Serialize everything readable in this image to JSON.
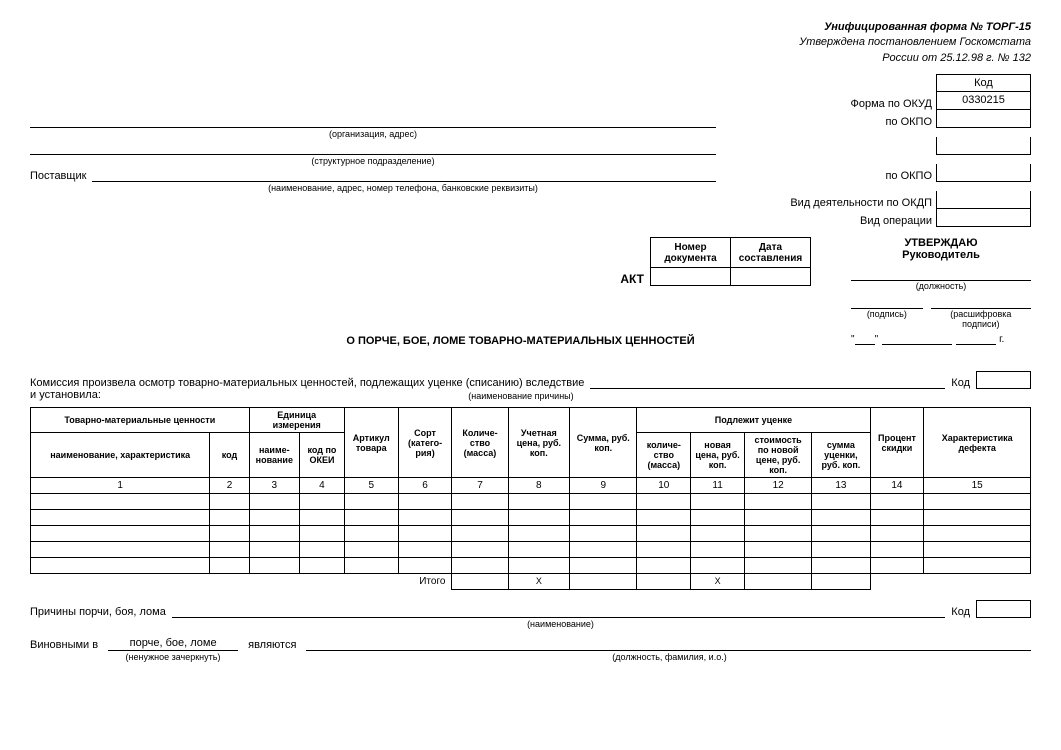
{
  "header": {
    "line1": "Унифицированная форма № ТОРГ-15",
    "line2": "Утверждена постановлением Госкомстата",
    "line3": "России от 25.12.98 г. № 132"
  },
  "codes": {
    "header": "Код",
    "okud_label": "Форма по ОКУД",
    "okud_value": "0330215",
    "okpo1_label": "по ОКПО",
    "okpo2_label": "по ОКПО",
    "okdp_label": "Вид деятельности по ОКДП",
    "operation_label": "Вид операции"
  },
  "captions": {
    "org_address": "(организация, адрес)",
    "struct_unit": "(структурное подразделение)",
    "supplier_details": "(наименование, адрес, номер телефона, банковские реквизиты)",
    "position": "(должность)",
    "signature": "(подпись)",
    "decipher": "(расшифровка подписи)",
    "reason_name": "(наименование причины)",
    "name_caption": "(наименование)",
    "strike_unneeded": "(ненужное зачеркнуть)",
    "position_fio": "(должность, фамилия, и.о.)"
  },
  "labels": {
    "supplier": "Поставщик",
    "approve": "УТВЕРЖДАЮ",
    "manager": "Руководитель",
    "act": "АКТ",
    "act_subtitle": "О ПОРЧЕ, БОЕ, ЛОМЕ ТОВАРНО-МАТЕРИАЛЬНЫХ ЦЕННОСТЕЙ",
    "doc_number": "Номер документа",
    "doc_date": "Дата составления",
    "commission_text": "Комиссия произвела осмотр товарно-материальных ценностей, подлежащих уценке (списанию) вследствие",
    "established": "и установила:",
    "code": "Код",
    "reason": "Причины порчи, боя, лома",
    "guilty_in": "Виновными в",
    "guilty_what": "порче, бое, ломе",
    "are": "являются",
    "year_suffix": "г.",
    "itogo": "Итого",
    "x": "X"
  },
  "date_parts": {
    "open_quote": "\"",
    "close_quote": "\""
  },
  "table": {
    "headers": {
      "tmc": "Товарно-материальные ценности",
      "unit": "Единица измерения",
      "article": "Артикул товара",
      "sort": "Сорт (катего-рия)",
      "qty": "Количе-ство (масса)",
      "acc_price": "Учетная цена, руб. коп.",
      "sum": "Сумма, руб. коп.",
      "markdown": "Подлежит уценке",
      "discount": "Процент скидки",
      "defect": "Характеристика дефекта",
      "name_char": "наименование, характеристика",
      "code": "код",
      "unit_name": "наиме-нование",
      "unit_code": "код по ОКЕИ",
      "md_qty": "количе-ство (масса)",
      "md_new_price": "новая цена, руб. коп.",
      "md_cost_new": "стоимость по новой цене, руб. коп.",
      "md_markdown_sum": "сумма уценки, руб. коп."
    },
    "col_numbers": [
      "1",
      "2",
      "3",
      "4",
      "5",
      "6",
      "7",
      "8",
      "9",
      "10",
      "11",
      "12",
      "13",
      "14",
      "15"
    ],
    "data_rows_count": 5
  }
}
